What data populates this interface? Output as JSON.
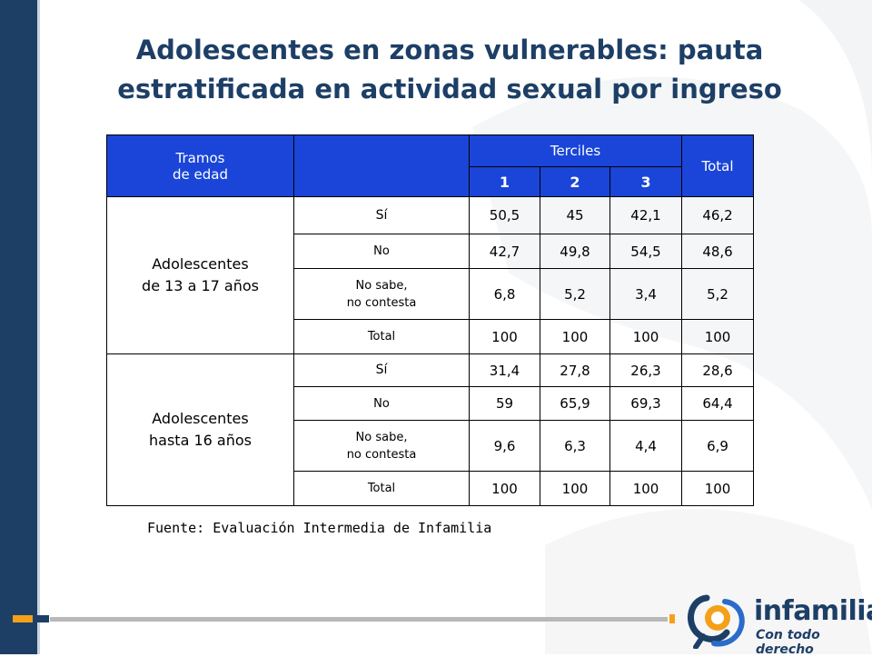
{
  "title": {
    "line1": "Adolescentes en zonas vulnerables: pauta",
    "line2": "estratificada en actividad sexual por ingreso"
  },
  "table": {
    "header": {
      "age_line1": "Tramos",
      "age_line2": "de edad",
      "terciles": "Terciles",
      "total": "Total",
      "t1": "1",
      "t2": "2",
      "t3": "3"
    },
    "groups": [
      {
        "label_line1": "Adolescentes",
        "label_line2": "de 13 a 17 años",
        "rows": [
          {
            "resp": "Sí",
            "v1": "50,5",
            "v2": "45",
            "v3": "42,1",
            "total": "46,2"
          },
          {
            "resp": "No",
            "v1": "42,7",
            "v2": "49,8",
            "v3": "54,5",
            "total": "48,6"
          },
          {
            "resp_line1": "No sabe,",
            "resp_line2": "no contesta",
            "v1": "6,8",
            "v2": "5,2",
            "v3": "3,4",
            "total": "5,2"
          },
          {
            "resp": "Total",
            "v1": "100",
            "v2": "100",
            "v3": "100",
            "total": "100"
          }
        ]
      },
      {
        "label_line1": "Adolescentes",
        "label_line2": "hasta 16  años",
        "rows": [
          {
            "resp": "Sí",
            "v1": "31,4",
            "v2": "27,8",
            "v3": "26,3",
            "total": "28,6"
          },
          {
            "resp": "No",
            "v1": "59",
            "v2": "65,9",
            "v3": "69,3",
            "total": "64,4"
          },
          {
            "resp_line1": "No sabe,",
            "resp_line2": "no contesta",
            "v1": "9,6",
            "v2": "6,3",
            "v3": "4,4",
            "total": "6,9"
          },
          {
            "resp": "Total",
            "v1": "100",
            "v2": "100",
            "v3": "100",
            "total": "100"
          }
        ]
      }
    ]
  },
  "source": "Fuente: Evaluación Intermedia de Infamilia",
  "logo": {
    "name": "infamilia",
    "tagline": "Con todo derecho"
  },
  "colors": {
    "title": "#1d3f66",
    "header_fill": "#1a45d8",
    "left_bar": "#1d3f66",
    "accent": "#f5a01a"
  }
}
